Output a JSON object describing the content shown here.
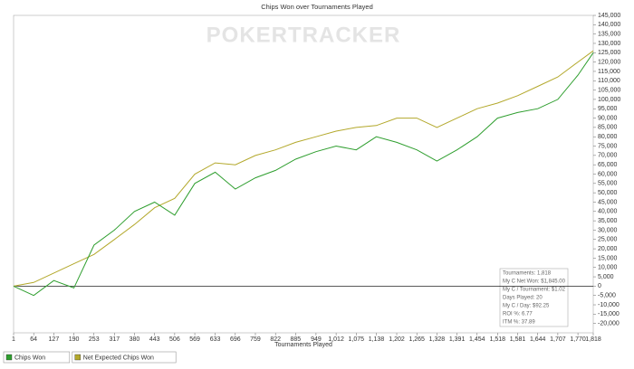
{
  "chart_data": {
    "type": "line",
    "title": "Chips Won over Tournaments Played",
    "watermark": "POKERTRACKER",
    "x_label": "Tournaments Played",
    "x": [
      1,
      64,
      127,
      190,
      253,
      317,
      380,
      443,
      506,
      569,
      633,
      696,
      759,
      822,
      885,
      949,
      1012,
      1075,
      1138,
      1202,
      1265,
      1328,
      1391,
      1454,
      1518,
      1581,
      1644,
      1707,
      1770,
      1818
    ],
    "xlim": [
      1,
      1818
    ],
    "xticks": [
      1,
      64,
      127,
      190,
      253,
      317,
      380,
      443,
      506,
      569,
      633,
      696,
      759,
      822,
      885,
      949,
      {
        "value": 1012,
        "label": "1,012"
      },
      {
        "value": 1075,
        "label": "1,075"
      },
      {
        "value": 1138,
        "label": "1,138"
      },
      {
        "value": 1202,
        "label": "1,202"
      },
      {
        "value": 1265,
        "label": "1,265"
      },
      {
        "value": 1328,
        "label": "1,328"
      },
      {
        "value": 1391,
        "label": "1,391"
      },
      {
        "value": 1454,
        "label": "1,454"
      },
      {
        "value": 1518,
        "label": "1,518"
      },
      {
        "value": 1581,
        "label": "1,581"
      },
      {
        "value": 1644,
        "label": "1,644"
      },
      {
        "value": 1707,
        "label": "1,707"
      },
      {
        "value": 1770,
        "label": "1,770"
      },
      {
        "value": 1818,
        "label": "1,818"
      }
    ],
    "ylim": [
      -25000,
      145000
    ],
    "yticks": [
      {
        "value": -20000,
        "label": "-20,000"
      },
      {
        "value": -15000,
        "label": "-15,000"
      },
      {
        "value": -10000,
        "label": "-10,000"
      },
      {
        "value": -5000,
        "label": "-5,000"
      },
      0,
      {
        "value": 5000,
        "label": "5,000"
      },
      {
        "value": 10000,
        "label": "10,000"
      },
      {
        "value": 15000,
        "label": "15,000"
      },
      {
        "value": 20000,
        "label": "20,000"
      },
      {
        "value": 25000,
        "label": "25,000"
      },
      {
        "value": 30000,
        "label": "30,000"
      },
      {
        "value": 35000,
        "label": "35,000"
      },
      {
        "value": 40000,
        "label": "40,000"
      },
      {
        "value": 45000,
        "label": "45,000"
      },
      {
        "value": 50000,
        "label": "50,000"
      },
      {
        "value": 55000,
        "label": "55,000"
      },
      {
        "value": 60000,
        "label": "60,000"
      },
      {
        "value": 65000,
        "label": "65,000"
      },
      {
        "value": 70000,
        "label": "70,000"
      },
      {
        "value": 75000,
        "label": "75,000"
      },
      {
        "value": 80000,
        "label": "80,000"
      },
      {
        "value": 85000,
        "label": "85,000"
      },
      {
        "value": 90000,
        "label": "90,000"
      },
      {
        "value": 95000,
        "label": "95,000"
      },
      {
        "value": 100000,
        "label": "100,000"
      },
      {
        "value": 105000,
        "label": "105,000"
      },
      {
        "value": 110000,
        "label": "110,000"
      },
      {
        "value": 115000,
        "label": "115,000"
      },
      {
        "value": 120000,
        "label": "120,000"
      },
      {
        "value": 125000,
        "label": "125,000"
      },
      {
        "value": 130000,
        "label": "130,000"
      },
      {
        "value": 135000,
        "label": "135,000"
      },
      {
        "value": 140000,
        "label": "140,000"
      },
      {
        "value": 145000,
        "label": "145,000"
      }
    ],
    "series": [
      {
        "name": "Chips Won",
        "color": "#2e9e2e",
        "values": [
          0,
          -5000,
          3000,
          -1000,
          22000,
          30000,
          40000,
          45000,
          38000,
          55000,
          61000,
          52000,
          58000,
          62000,
          68000,
          72000,
          75000,
          73000,
          80000,
          77000,
          73000,
          67000,
          73000,
          80000,
          90000,
          93000,
          95000,
          100000,
          113000,
          125000
        ]
      },
      {
        "name": "Net Expected Chips Won",
        "color": "#b3a82b",
        "values": [
          0,
          2000,
          7000,
          12000,
          17000,
          25000,
          33000,
          42000,
          47000,
          60000,
          66000,
          65000,
          70000,
          73000,
          77000,
          80000,
          83000,
          85000,
          86000,
          90000,
          90000,
          85000,
          90000,
          95000,
          98000,
          102000,
          107000,
          112000,
          120000,
          126000
        ]
      }
    ],
    "stats": [
      "Tournaments: 1,818",
      "My C Net Won: $1,845.00",
      "My C / Tournament: $1.02",
      "Days Played: 20",
      "My C / Day: $92.25",
      "ROI %: 6.77",
      "ITM %: 37.89"
    ]
  }
}
